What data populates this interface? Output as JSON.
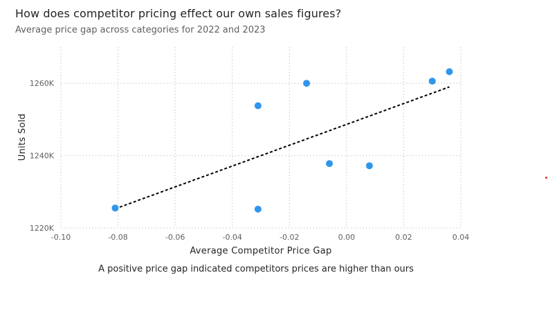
{
  "header": {
    "title": "How does competitor pricing effect our own sales figures?",
    "subtitle": "Average price gap across categories for 2022 and 2023"
  },
  "caption": "A positive price gap indicated competitors prices are higher than ours",
  "colors": {
    "marker": "#2f96ec",
    "trendline": "#000000",
    "grid": "#c8c6c4",
    "text": "#252423",
    "outlier_dot": "#e8243a"
  },
  "chart_data": {
    "type": "scatter",
    "title": "How does competitor pricing effect our own sales figures?",
    "subtitle": "Average price gap across categories for 2022 and 2023",
    "xlabel": "Average Competitor Price Gap",
    "ylabel": "Units Sold",
    "xlim": [
      -0.1,
      0.04
    ],
    "ylim": [
      1220000,
      1270000
    ],
    "x_ticks": [
      -0.1,
      -0.08,
      -0.06,
      -0.04,
      -0.02,
      0.0,
      0.02,
      0.04
    ],
    "x_tick_labels": [
      "-0.10",
      "-0.08",
      "-0.06",
      "-0.04",
      "-0.02",
      "0.00",
      "0.02",
      "0.04"
    ],
    "y_ticks": [
      1220000,
      1240000,
      1260000
    ],
    "y_tick_labels": [
      "1220K",
      "1240K",
      "1260K"
    ],
    "grid": true,
    "points": [
      {
        "x": -0.081,
        "y": 1225500
      },
      {
        "x": -0.031,
        "y": 1225200
      },
      {
        "x": -0.031,
        "y": 1253800
      },
      {
        "x": -0.014,
        "y": 1260000
      },
      {
        "x": -0.006,
        "y": 1237800
      },
      {
        "x": 0.008,
        "y": 1237200
      },
      {
        "x": 0.03,
        "y": 1260600
      },
      {
        "x": 0.036,
        "y": 1263200
      }
    ],
    "trendline": {
      "style": "dashed",
      "x": [
        -0.081,
        0.036
      ],
      "y": [
        1225300,
        1259000
      ]
    }
  }
}
